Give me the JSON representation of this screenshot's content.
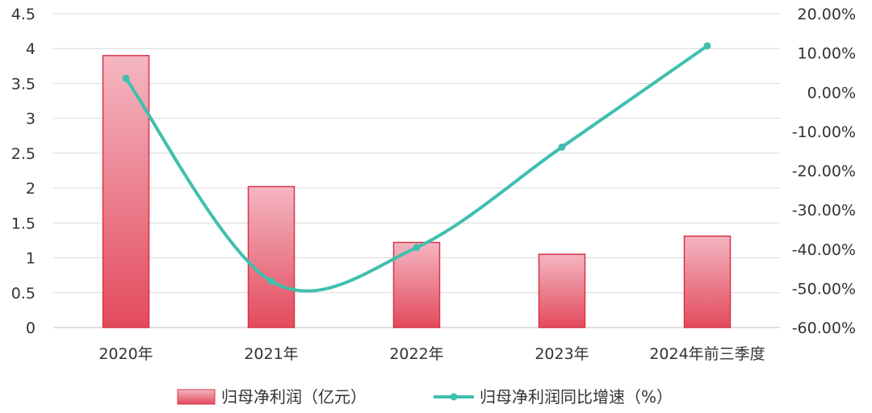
{
  "chart_data": {
    "type": "bar+line",
    "categories": [
      "2020年",
      "2021年",
      "2022年",
      "2023年",
      "2024年前三季度"
    ],
    "series": [
      {
        "name": "归母净利润（亿元）",
        "type": "bar",
        "axis": "left",
        "values": [
          3.9,
          2.02,
          1.22,
          1.05,
          1.31
        ]
      },
      {
        "name": "归母净利润同比增速（%）",
        "type": "line",
        "axis": "right",
        "values": [
          3.5,
          -48.2,
          -39.6,
          -14.0,
          11.8
        ]
      }
    ],
    "y_left": {
      "min": 0,
      "max": 4.5,
      "ticks": [
        "0",
        "0.5",
        "1",
        "1.5",
        "2",
        "2.5",
        "3",
        "3.5",
        "4",
        "4.5"
      ]
    },
    "y_right": {
      "min": -60,
      "max": 20,
      "ticks": [
        "-60.00%",
        "-50.00%",
        "-40.00%",
        "-30.00%",
        "-20.00%",
        "-10.00%",
        "0.00%",
        "10.00%",
        "20.00%"
      ]
    },
    "grid": true,
    "legend_position": "bottom",
    "colors": {
      "bar_top": "#f4b6c2",
      "bar_bottom": "#e34a5c",
      "bar_edge": "#d8344a",
      "line": "#3fbfae",
      "grid": "#d9d9d9"
    }
  }
}
